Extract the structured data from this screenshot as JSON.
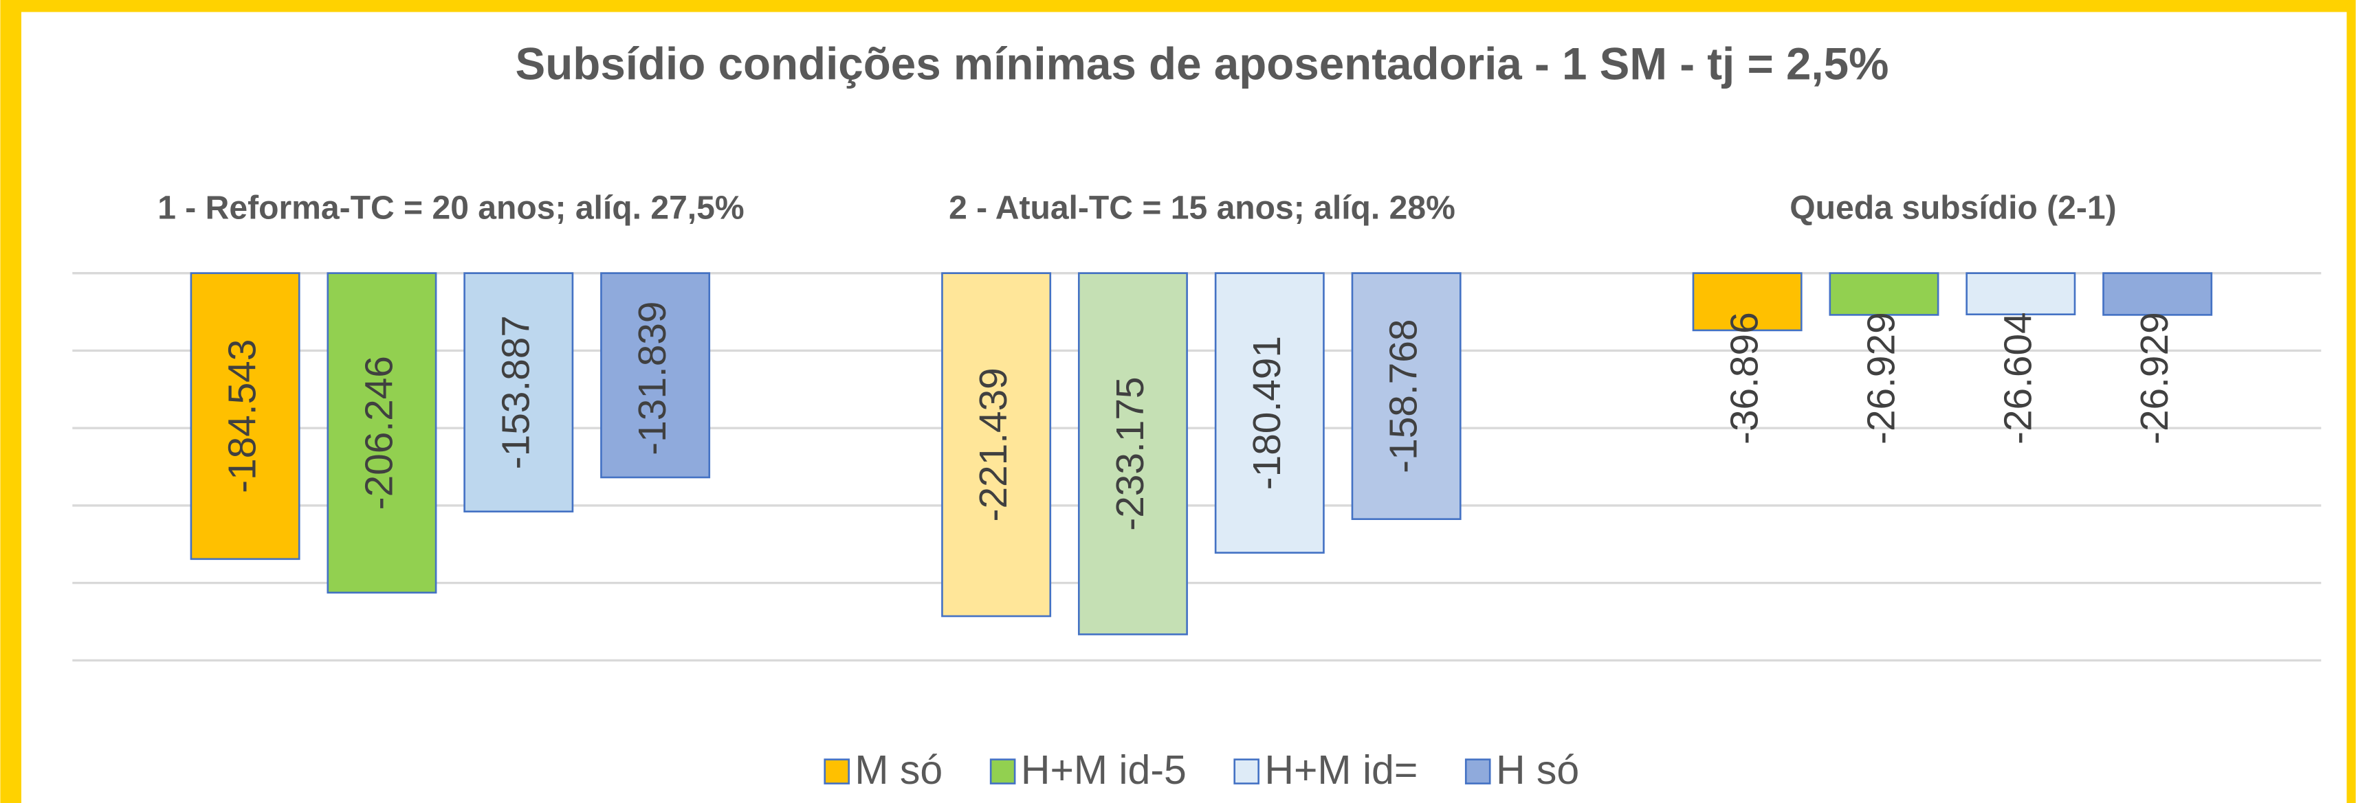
{
  "chart_data": {
    "type": "bar",
    "title": "Subsídio condições mínimas de aposentadoria - 1 SM - tj = 2,5%",
    "categories": [
      "1 - Reforma-TC = 20 anos; alíq. 27,5%",
      "2 - Atual-TC = 15 anos; alíq. 28%",
      "Queda subsídio (2-1)"
    ],
    "series": [
      {
        "name": "M só",
        "color": "#FFC000",
        "colors": [
          "#FFC000",
          "#FFE699",
          "#FFC000"
        ],
        "values": [
          -184.543,
          -221.439,
          -36.896
        ]
      },
      {
        "name": "H+M id-5",
        "color": "#92D050",
        "colors": [
          "#92D050",
          "#C5E0B4",
          "#92D050"
        ],
        "values": [
          -206.246,
          -233.175,
          -26.929
        ]
      },
      {
        "name": "H+M id=",
        "color": "#DEEBF7",
        "colors": [
          "#BDD7EE",
          "#DEEBF7",
          "#DEEBF7"
        ],
        "values": [
          -153.887,
          -180.491,
          -26.604
        ]
      },
      {
        "name": "H só",
        "color": "#8FAADC",
        "colors": [
          "#8FAADC",
          "#B4C7E7",
          "#8FAADC"
        ],
        "values": [
          -131.839,
          -158.768,
          -26.929
        ]
      }
    ],
    "edgecolor": "#4472C4",
    "ylim": [
      -250,
      0
    ],
    "yticks": [
      -250,
      -200,
      -150,
      -100,
      -50,
      0
    ],
    "grid": true,
    "legend": "bottom"
  }
}
